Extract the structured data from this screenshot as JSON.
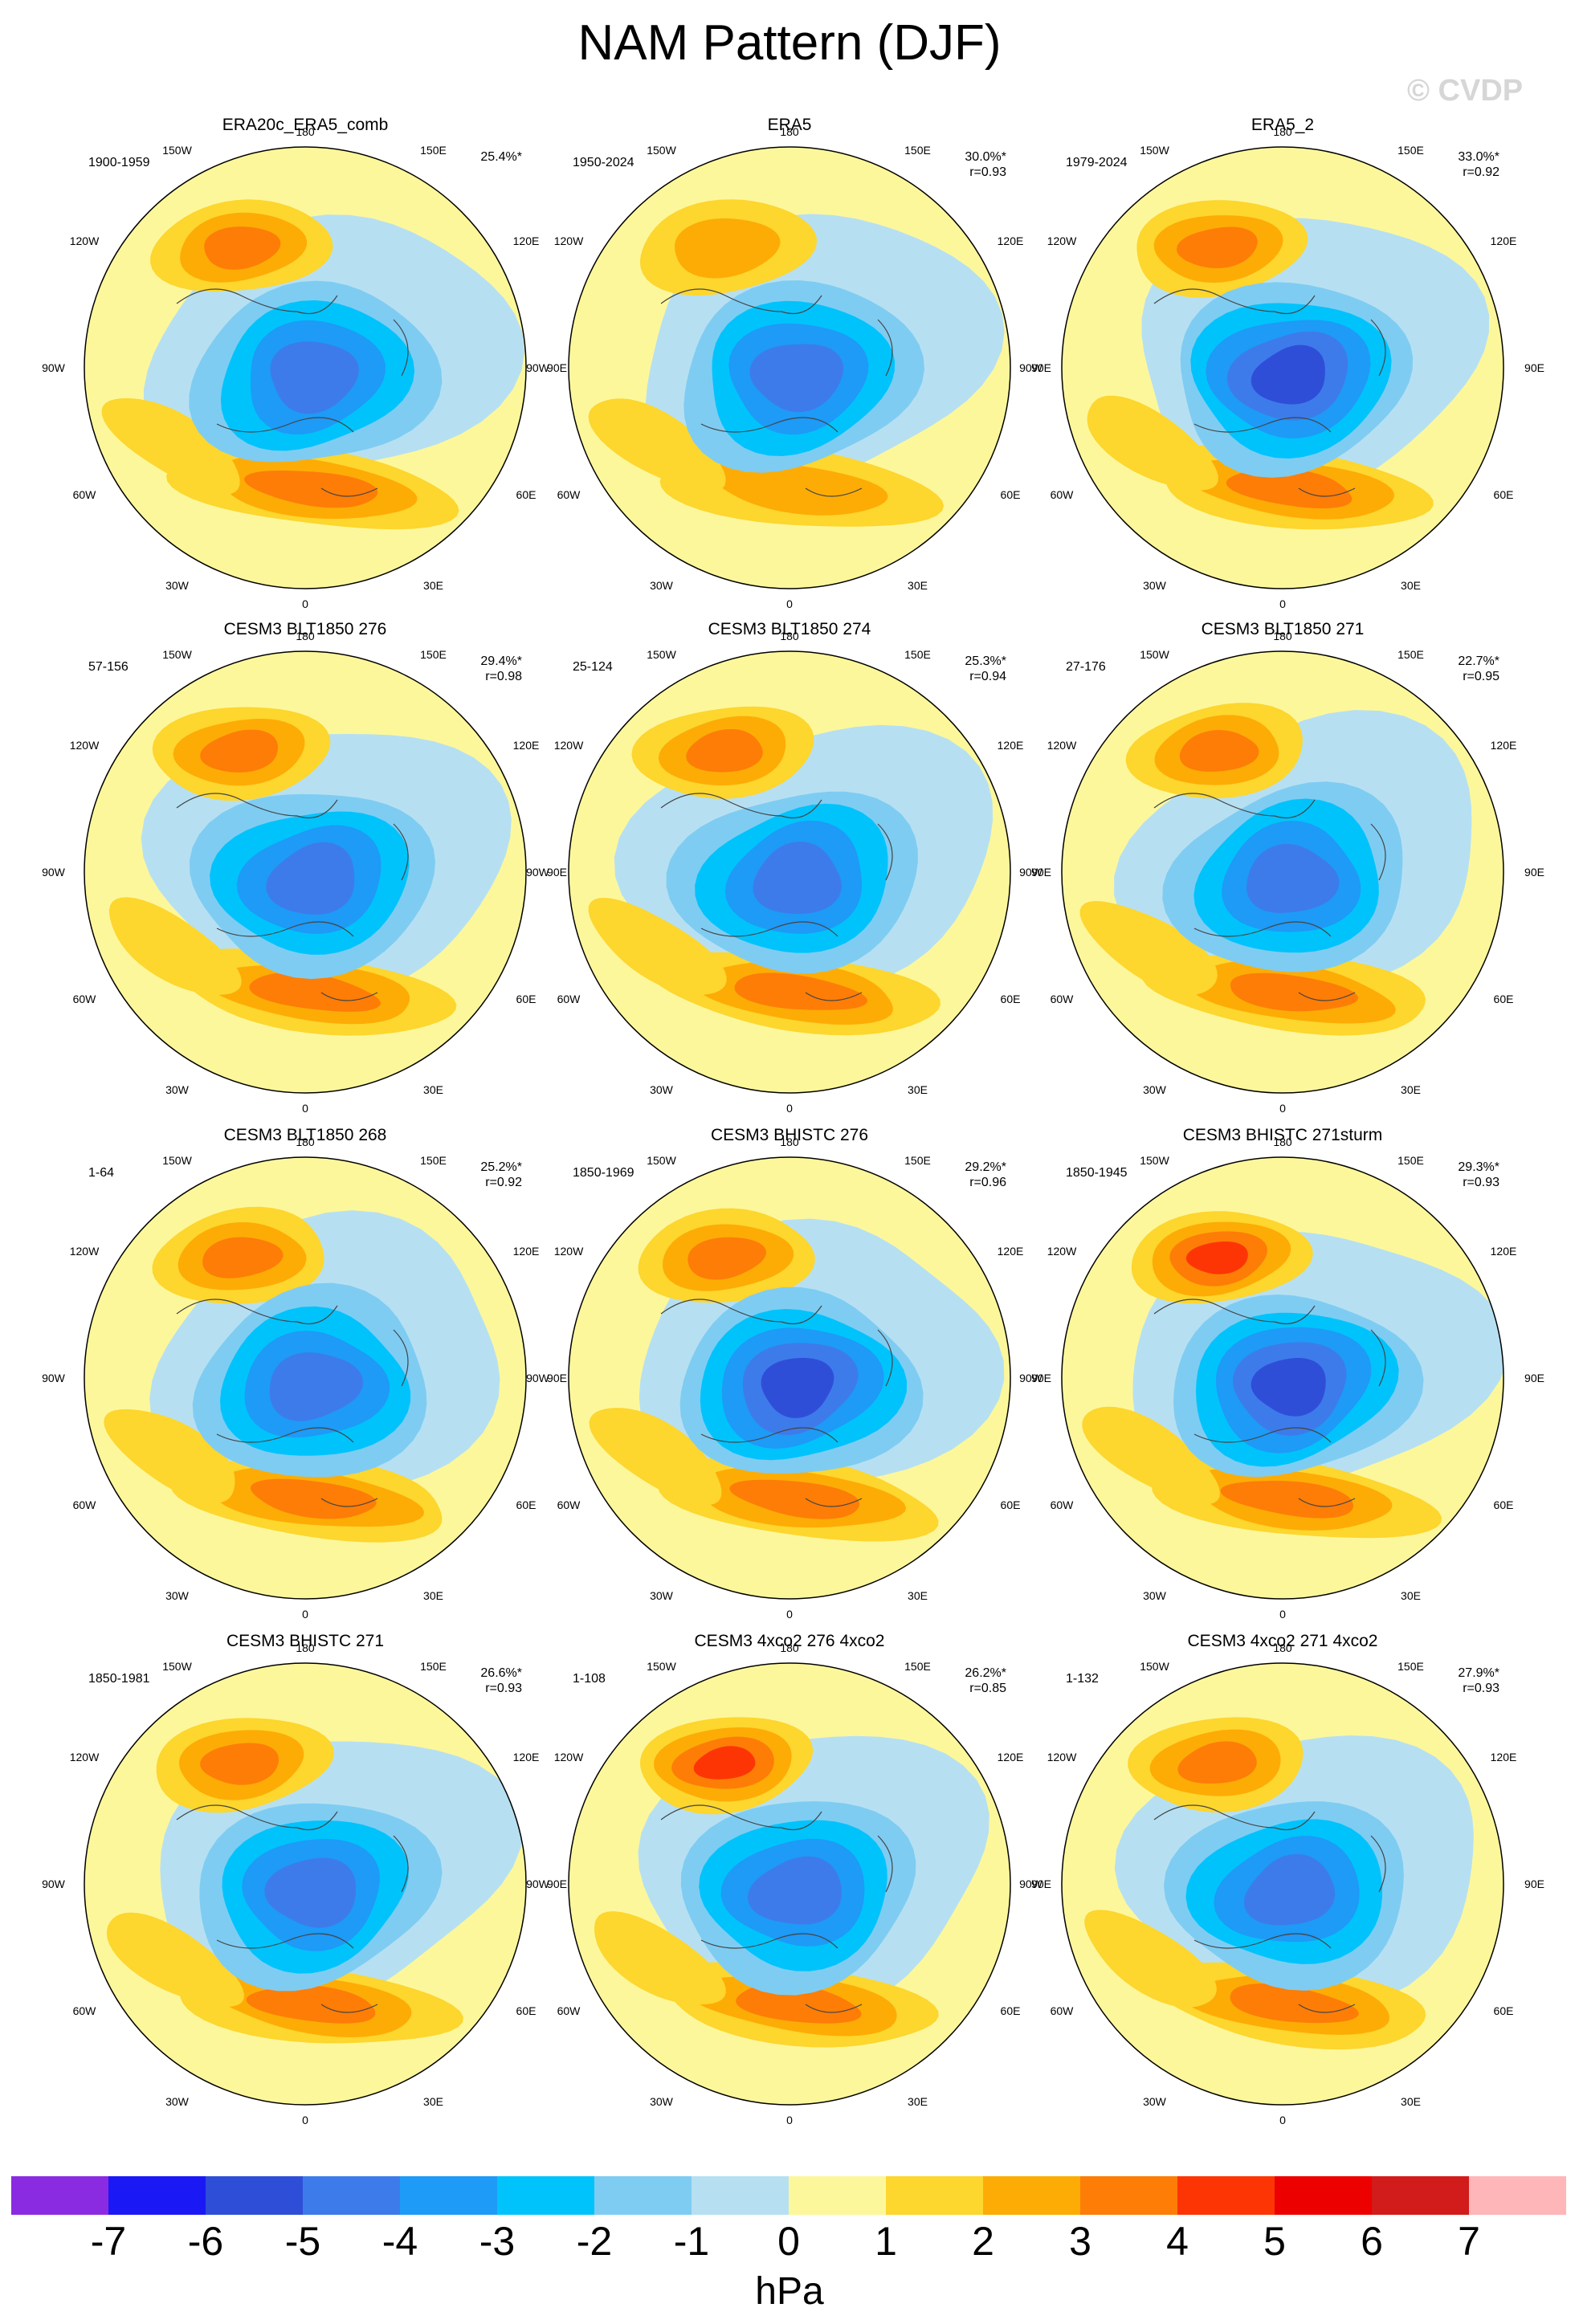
{
  "title": "NAM Pattern (DJF)",
  "watermark": "© CVDP",
  "chart_data": {
    "type": "heatmap",
    "title": "NAM Pattern (DJF)",
    "projection": "north polar stereographic",
    "longitude_labels": {
      "lon180": "180",
      "lon150w": "150W",
      "lon150e": "150E",
      "lon120w": "120W",
      "lon120e": "120E",
      "lon90w": "90W",
      "lon90e": "90E",
      "lon60w": "60W",
      "lon60e": "60E",
      "lon30w": "30W",
      "lon30e": "30E",
      "lon0": "0"
    },
    "colorbar": {
      "units": "hPa",
      "ticks": [
        "-7",
        "-6",
        "-5",
        "-4",
        "-3",
        "-2",
        "-1",
        "0",
        "1",
        "2",
        "3",
        "4",
        "5",
        "6",
        "7"
      ],
      "colors": [
        "#8a2be2",
        "#1a18f5",
        "#2f4ed8",
        "#3d7bea",
        "#1e9af7",
        "#00c3fc",
        "#7fccf2",
        "#b6e0f2",
        "#fdf79c",
        "#fdd62e",
        "#fdac05",
        "#fd7d07",
        "#fd3505",
        "#ec0000",
        "#d21b1b",
        "#ffb6b9"
      ]
    },
    "panels": [
      {
        "name": "ERA20c_ERA5_comb",
        "period": "1900-1959",
        "variance": "25.4%*",
        "corr": "",
        "neg_min": -4,
        "pos_max": 3.5
      },
      {
        "name": "ERA5",
        "period": "1950-2024",
        "variance": "30.0%*",
        "corr": "r=0.93",
        "neg_min": -4.5,
        "pos_max": 2.5
      },
      {
        "name": "ERA5_2",
        "period": "1979-2024",
        "variance": "33.0%*",
        "corr": "r=0.92",
        "neg_min": -5.5,
        "pos_max": 3.5
      },
      {
        "name": "CESM3 BLT1850 276",
        "period": "57-156",
        "variance": "29.4%*",
        "corr": "r=0.98",
        "neg_min": -4.5,
        "pos_max": 3.5
      },
      {
        "name": "CESM3 BLT1850 274",
        "period": "25-124",
        "variance": "25.3%*",
        "corr": "r=0.94",
        "neg_min": -4.5,
        "pos_max": 3.5
      },
      {
        "name": "CESM3 BLT1850 271",
        "period": "27-176",
        "variance": "22.7%*",
        "corr": "r=0.95",
        "neg_min": -4.5,
        "pos_max": 3.5
      },
      {
        "name": "CESM3 BLT1850 268",
        "period": "1-64",
        "variance": "25.2%*",
        "corr": "r=0.92",
        "neg_min": -4.5,
        "pos_max": 3.5
      },
      {
        "name": "CESM3 BHISTC 276",
        "period": "1850-1969",
        "variance": "29.2%*",
        "corr": "r=0.96",
        "neg_min": -5.5,
        "pos_max": 3.5
      },
      {
        "name": "CESM3 BHISTC 271sturm",
        "period": "1850-1945",
        "variance": "29.3%*",
        "corr": "r=0.93",
        "neg_min": -5.5,
        "pos_max": 4.5
      },
      {
        "name": "CESM3 BHISTC 271",
        "period": "1850-1981",
        "variance": "26.6%*",
        "corr": "r=0.93",
        "neg_min": -4.5,
        "pos_max": 3.5
      },
      {
        "name": "CESM3 4xco2 276 4xco2",
        "period": "1-108",
        "variance": "26.2%*",
        "corr": "r=0.85",
        "neg_min": -4.5,
        "pos_max": 4.5
      },
      {
        "name": "CESM3 4xco2 271 4xco2",
        "period": "1-132",
        "variance": "27.9%*",
        "corr": "r=0.93",
        "neg_min": -4.5,
        "pos_max": 3.5
      }
    ]
  }
}
